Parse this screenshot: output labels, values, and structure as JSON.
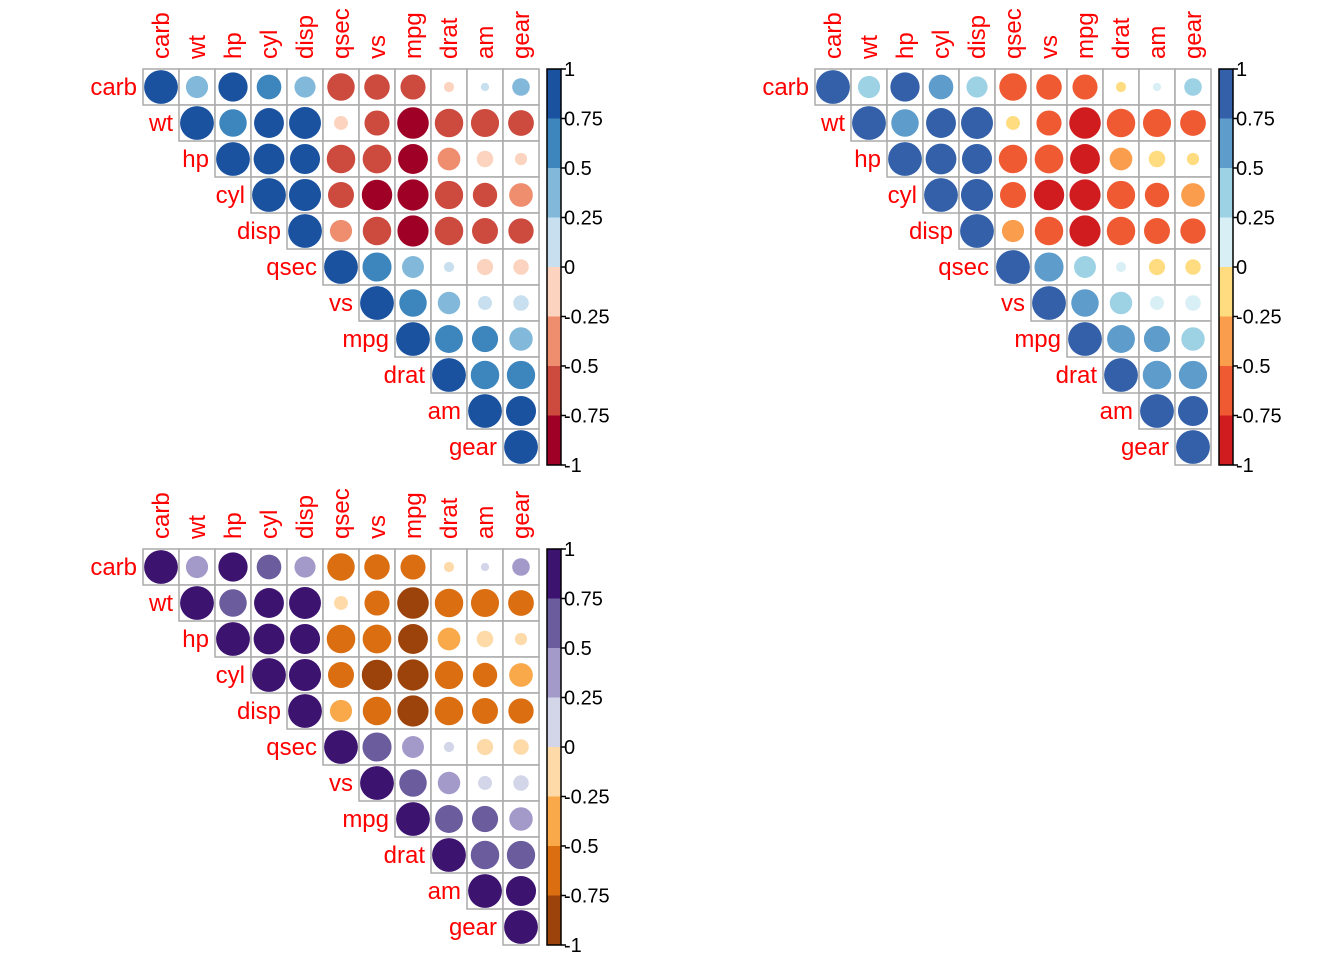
{
  "chart_data": [
    {
      "type": "heatmap",
      "subtype": "corrplot-circle-upper",
      "palette_name": "RdBu",
      "colors": [
        "#9F0026",
        "#CC4A3E",
        "#EE8E6E",
        "#FCD3BE",
        "#C7DFEE",
        "#82B9DA",
        "#3C86BD",
        "#1A52A0"
      ]
    },
    {
      "type": "heatmap",
      "subtype": "corrplot-circle-upper",
      "palette_name": "RdYlBu",
      "colors": [
        "#D01C1F",
        "#F05A32",
        "#FA9E4E",
        "#FEDC7F",
        "#D8EFF6",
        "#9DD2E5",
        "#5E9CCB",
        "#3360A8"
      ]
    },
    {
      "type": "heatmap",
      "subtype": "corrplot-circle-upper",
      "palette_name": "PuOr",
      "colors": [
        "#9C420B",
        "#DA6E11",
        "#F9A84A",
        "#FDDAA8",
        "#D3D5E9",
        "#A49AC9",
        "#6B5C9E",
        "#3D1370"
      ]
    }
  ],
  "shared": {
    "variables": [
      "carb",
      "wt",
      "hp",
      "cyl",
      "disp",
      "qsec",
      "vs",
      "mpg",
      "drat",
      "am",
      "gear"
    ],
    "upper_values": [
      [
        1,
        0.43,
        0.75,
        0.53,
        0.39,
        -0.66,
        -0.57,
        -0.55,
        -0.09,
        0.06,
        0.27
      ],
      [
        1,
        0.66,
        0.78,
        0.89,
        -0.17,
        -0.55,
        -0.87,
        -0.71,
        -0.69,
        -0.58
      ],
      [
        1,
        0.83,
        0.79,
        -0.71,
        -0.72,
        -0.78,
        -0.45,
        -0.24,
        -0.13
      ],
      [
        1,
        0.9,
        -0.59,
        -0.81,
        -0.85,
        -0.7,
        -0.52,
        -0.49
      ],
      [
        1,
        -0.43,
        -0.71,
        -0.85,
        -0.71,
        -0.59,
        -0.56
      ],
      [
        1,
        0.74,
        0.42,
        0.09,
        -0.23,
        -0.21
      ],
      [
        1,
        0.66,
        0.44,
        0.17,
        0.21
      ],
      [
        1,
        0.68,
        0.6,
        0.48
      ],
      [
        1,
        0.71,
        0.7
      ],
      [
        1,
        0.79
      ],
      [
        1
      ]
    ],
    "legend_ticks": [
      "1",
      "0.75",
      "0.5",
      "0.25",
      "0",
      "-0.25",
      "-0.5",
      "-0.75",
      "-1"
    ],
    "label_color": "#FF0000",
    "grid_color": "#AAAAAA"
  }
}
